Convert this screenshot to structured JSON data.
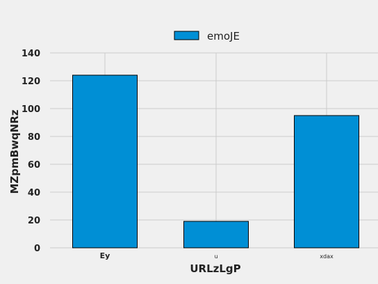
{
  "chart_data": {
    "type": "bar",
    "categories": [
      "Ey",
      "u",
      "xdax"
    ],
    "series": [
      {
        "name": "emoJE",
        "values": [
          124,
          19,
          95
        ]
      }
    ],
    "title": "",
    "xlabel": "URLzLgP",
    "ylabel": "MZpmBwqNRz",
    "ylim": [
      0,
      140
    ],
    "yticks": [
      0,
      20,
      40,
      60,
      80,
      100,
      120,
      140
    ],
    "grid": true,
    "legend": "top-center",
    "colors": {
      "bar": "#008fd5",
      "background": "#f0f0f0",
      "grid": "#cbcbcb"
    }
  }
}
